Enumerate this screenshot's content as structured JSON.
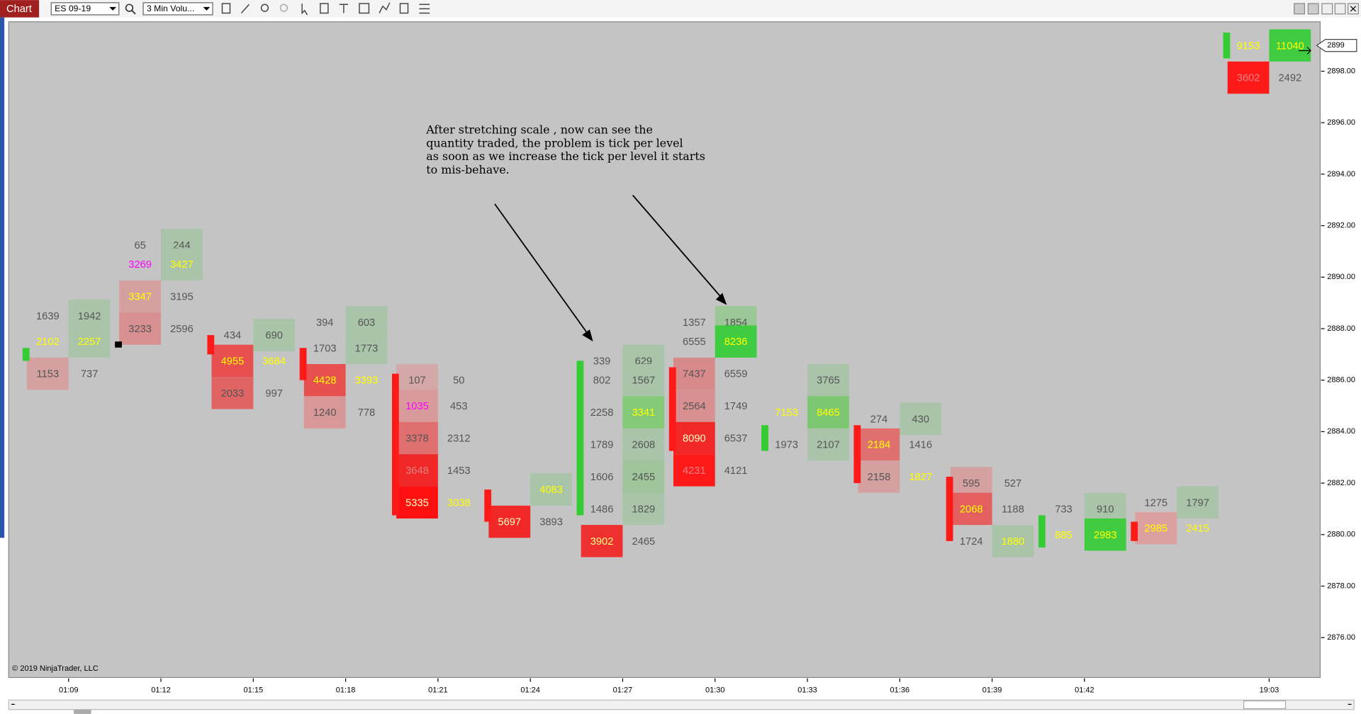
{
  "toolbar": {
    "title": "Chart",
    "instrument": "ES 09-19",
    "period": "3 Min Volu..."
  },
  "chart_data": {
    "type": "footprint",
    "ylim": [
      2874.45,
      2899.92
    ],
    "yticks": [
      {
        "value": 2876,
        "label": "2876.00"
      },
      {
        "value": 2878,
        "label": "2878.00"
      },
      {
        "value": 2880,
        "label": "2880.00"
      },
      {
        "value": 2882,
        "label": "2882.00"
      },
      {
        "value": 2884,
        "label": "2884.00"
      },
      {
        "value": 2886,
        "label": "2886.00"
      },
      {
        "value": 2888,
        "label": "2888.00"
      },
      {
        "value": 2890,
        "label": "2890.00"
      },
      {
        "value": 2892,
        "label": "2892.00"
      },
      {
        "value": 2894,
        "label": "2894.00"
      },
      {
        "value": 2896,
        "label": "2896.00"
      },
      {
        "value": 2898,
        "label": "2898.00"
      }
    ],
    "last_price": 2899,
    "annotation": [
      "After stretching scale , now can see the",
      "quantity traded, the problem is tick per level",
      "as soon as we increase the tick per level it starts",
      "to mis-behave."
    ],
    "copyright": "© 2019 NinjaTrader, LLC",
    "bars": [
      {
        "time": "01:09",
        "candle": [
          2887.25,
          2886.75
        ],
        "candle_color": "#33cc33",
        "rows": [
          {
            "price": 2888.5,
            "bid": 1639,
            "ask": 1942,
            "ask_bg": "#a9c4a9"
          },
          {
            "price": 2887.5,
            "bid": 2102,
            "ask": 2257,
            "ask_bg": "#a9c4a9",
            "bid_fg": "#ffff00",
            "ask_fg": "#ffff00"
          },
          {
            "price": 2886.25,
            "bid": 1153,
            "ask": 737,
            "bid_bg": "#d4a0a0"
          }
        ]
      },
      {
        "time": "01:12",
        "candle": [
          2887.5,
          2887.5
        ],
        "candle_color": "#000000",
        "rows": [
          {
            "price": 2891.25,
            "bid": 65,
            "ask": 244,
            "ask_bg": "#a9c4a9"
          },
          {
            "price": 2890.5,
            "bid": 3269,
            "ask": 3427,
            "ask_bg": "#a9c4a9",
            "bid_fg": "#ff00ff",
            "ask_fg": "#ffff00"
          },
          {
            "price": 2889.25,
            "bid": 3347,
            "ask": 3195,
            "bid_bg": "#d4a0a0",
            "bid_fg": "#ffff00"
          },
          {
            "price": 2888,
            "bid": 3233,
            "ask": 2596,
            "bid_bg": "#d89090"
          }
        ]
      },
      {
        "time": "01:15",
        "candle": [
          2887.75,
          2887
        ],
        "candle_color": "#ff1a1a",
        "rows": [
          {
            "price": 2887.75,
            "bid": 434,
            "ask": 690,
            "ask_bg": "#a9c4a9"
          },
          {
            "price": 2886.75,
            "bid": 4955,
            "ask": 3684,
            "bid_bg": "#e85050",
            "bid_fg": "#ffff00",
            "ask_fg": "#ffff00"
          },
          {
            "price": 2885.5,
            "bid": 2033,
            "ask": 997,
            "bid_bg": "#e06464"
          }
        ]
      },
      {
        "time": "01:18",
        "candle": [
          2887.25,
          2886
        ],
        "candle_color": "#ff1a1a",
        "rows": [
          {
            "price": 2888.25,
            "bid": 394,
            "ask": 603,
            "ask_bg": "#a9c4a9"
          },
          {
            "price": 2887.25,
            "bid": 1703,
            "ask": 1773,
            "ask_bg": "#a9c4a9"
          },
          {
            "price": 2886,
            "bid": 4428,
            "ask": 3393,
            "bid_bg": "#e85050",
            "bid_fg": "#ffff00",
            "ask_fg": "#ffff00"
          },
          {
            "price": 2884.75,
            "bid": 1240,
            "ask": 778,
            "bid_bg": "#d89898"
          }
        ]
      },
      {
        "time": "01:21",
        "candle": [
          2886.25,
          2880.75
        ],
        "candle_color": "#ff1a1a",
        "rows": [
          {
            "price": 2886,
            "bid": 107,
            "ask": 50,
            "bid_bg": "#d4a8a8"
          },
          {
            "price": 2885,
            "bid": 1035,
            "ask": 453,
            "bid_bg": "#d89a9a",
            "bid_fg": "#ff00ff"
          },
          {
            "price": 2883.75,
            "bid": 3378,
            "ask": 2312,
            "bid_bg": "#e07070"
          },
          {
            "price": 2882.5,
            "bid": 3648,
            "ask": 1453,
            "bid_bg": "#f02828",
            "bid_fg": "#e08080"
          },
          {
            "price": 2881.25,
            "bid": 5335,
            "ask": 3038,
            "bid_bg": "#ff1010",
            "bid_fg": "#ffffc0",
            "ask_fg": "#ffff00"
          }
        ]
      },
      {
        "time": "01:24",
        "candle": [
          2881.75,
          2880.5
        ],
        "candle_color": "#ff1a1a",
        "rows": [
          {
            "price": 2881.75,
            "bid": null,
            "ask": 4083,
            "ask_bg": "#a9c4a9",
            "ask_fg": "#ffff00"
          },
          {
            "price": 2880.5,
            "bid": 5697,
            "ask": 3893,
            "bid_bg": "#f02828",
            "bid_fg": "#ffffc0"
          }
        ]
      },
      {
        "time": "01:27",
        "candle": [
          2886.75,
          2880.75
        ],
        "candle_color": "#33cc33",
        "rows": [
          {
            "price": 2886.75,
            "bid": 339,
            "ask": 629,
            "ask_bg": "#a9c4a9"
          },
          {
            "price": 2886,
            "bid": 802,
            "ask": 1567,
            "ask_bg": "#a9c4a9"
          },
          {
            "price": 2884.75,
            "bid": 2258,
            "ask": 3341,
            "ask_bg": "#84c978",
            "ask_fg": "#ffff00"
          },
          {
            "price": 2883.5,
            "bid": 1789,
            "ask": 2608,
            "ask_bg": "#a9c4a9"
          },
          {
            "price": 2882.25,
            "bid": 1606,
            "ask": 2455,
            "ask_bg": "#a0c49c"
          },
          {
            "price": 2881,
            "bid": 1486,
            "ask": 1829,
            "ask_bg": "#a9c4a9"
          },
          {
            "price": 2879.75,
            "bid": 3902,
            "ask": 2465,
            "bid_bg": "#ee3030",
            "bid_fg": "#ffff80"
          }
        ]
      },
      {
        "time": "01:30",
        "candle": [
          2886.5,
          2883.25
        ],
        "candle_color": "#ff1a1a",
        "rows": [
          {
            "price": 2888.25,
            "bid": 1357,
            "ask": 1854,
            "ask_bg": "#9cc898"
          },
          {
            "price": 2887.5,
            "bid": 6555,
            "ask": 8236,
            "ask_bg": "#40cc40",
            "ask_fg": "#ffff00"
          },
          {
            "price": 2886.25,
            "bid": 7437,
            "ask": 6559,
            "bid_bg": "#d88a8a"
          },
          {
            "price": 2885,
            "bid": 2564,
            "ask": 1749,
            "bid_bg": "#d89090"
          },
          {
            "price": 2883.75,
            "bid": 8090,
            "ask": 6537,
            "bid_bg": "#f02828",
            "bid_fg": "#ffffc0"
          },
          {
            "price": 2882.5,
            "bid": 4231,
            "ask": 4121,
            "bid_bg": "#ff1a1a",
            "bid_fg": "#e88080"
          }
        ]
      },
      {
        "time": "01:33",
        "candle": [
          2884.25,
          2883.25
        ],
        "candle_color": "#33cc33",
        "rows": [
          {
            "price": 2886,
            "bid": null,
            "ask": 3765,
            "ask_bg": "#a9c4a9"
          },
          {
            "price": 2884.75,
            "bid": 7153,
            "ask": 8465,
            "ask_bg": "#7cc870",
            "bid_fg": "#ffff00",
            "ask_fg": "#ffff00"
          },
          {
            "price": 2883.5,
            "bid": 1973,
            "ask": 2107,
            "ask_bg": "#a9c4a9"
          }
        ]
      },
      {
        "time": "01:36",
        "candle": [
          2884.25,
          2882
        ],
        "candle_color": "#ff1a1a",
        "rows": [
          {
            "price": 2884.5,
            "bid": 274,
            "ask": 430,
            "ask_bg": "#a9c4a9"
          },
          {
            "price": 2883.5,
            "bid": 2184,
            "ask": 1416,
            "bid_bg": "#e07070",
            "bid_fg": "#ffff00"
          },
          {
            "price": 2882.25,
            "bid": 2158,
            "ask": 1827,
            "bid_bg": "#d4a0a0",
            "ask_fg": "#ffff00"
          }
        ]
      },
      {
        "time": "01:39",
        "candle": [
          2882.25,
          2879.75
        ],
        "candle_color": "#ff1a1a",
        "rows": [
          {
            "price": 2882,
            "bid": 595,
            "ask": 527,
            "bid_bg": "#d4a0a0"
          },
          {
            "price": 2881,
            "bid": 2068,
            "ask": 1188,
            "bid_bg": "#e46060",
            "bid_fg": "#ffff00"
          },
          {
            "price": 2879.75,
            "bid": 1724,
            "ask": 1880,
            "ask_bg": "#a9c4a9",
            "ask_fg": "#ffff00"
          }
        ]
      },
      {
        "time": "01:42",
        "candle": [
          2880.75,
          2879.5
        ],
        "candle_color": "#33cc33",
        "rows": [
          {
            "price": 2881,
            "bid": 733,
            "ask": 910,
            "ask_bg": "#a9c4a9"
          },
          {
            "price": 2880,
            "bid": 885,
            "ask": 2983,
            "ask_bg": "#40cc40",
            "bid_fg": "#ffff00",
            "ask_fg": "#ffff00"
          }
        ]
      },
      {
        "time": null,
        "candle": [
          2880.5,
          2879.75
        ],
        "candle_color": "#ff1a1a",
        "rows": [
          {
            "price": 2881.25,
            "bid": 1275,
            "ask": 1797,
            "ask_bg": "#a9c4a9"
          },
          {
            "price": 2880.25,
            "bid": 2985,
            "ask": 2415,
            "bid_bg": "#dca0a0",
            "bid_fg": "#ffff00",
            "ask_fg": "#ffff00"
          }
        ]
      },
      {
        "time": "19:03",
        "candle": [
          2899.5,
          2898.5
        ],
        "candle_color": "#33cc33",
        "rows": [
          {
            "price": 2899,
            "bid": 9153,
            "ask": 11040,
            "ask_bg": "#40cc40",
            "bid_fg": "#ffff00",
            "ask_fg": "#ffff00"
          },
          {
            "price": 2897.75,
            "bid": 3602,
            "ask": 2492,
            "bid_bg": "#ff1a1a",
            "bid_fg": "#e88080"
          }
        ]
      }
    ]
  }
}
